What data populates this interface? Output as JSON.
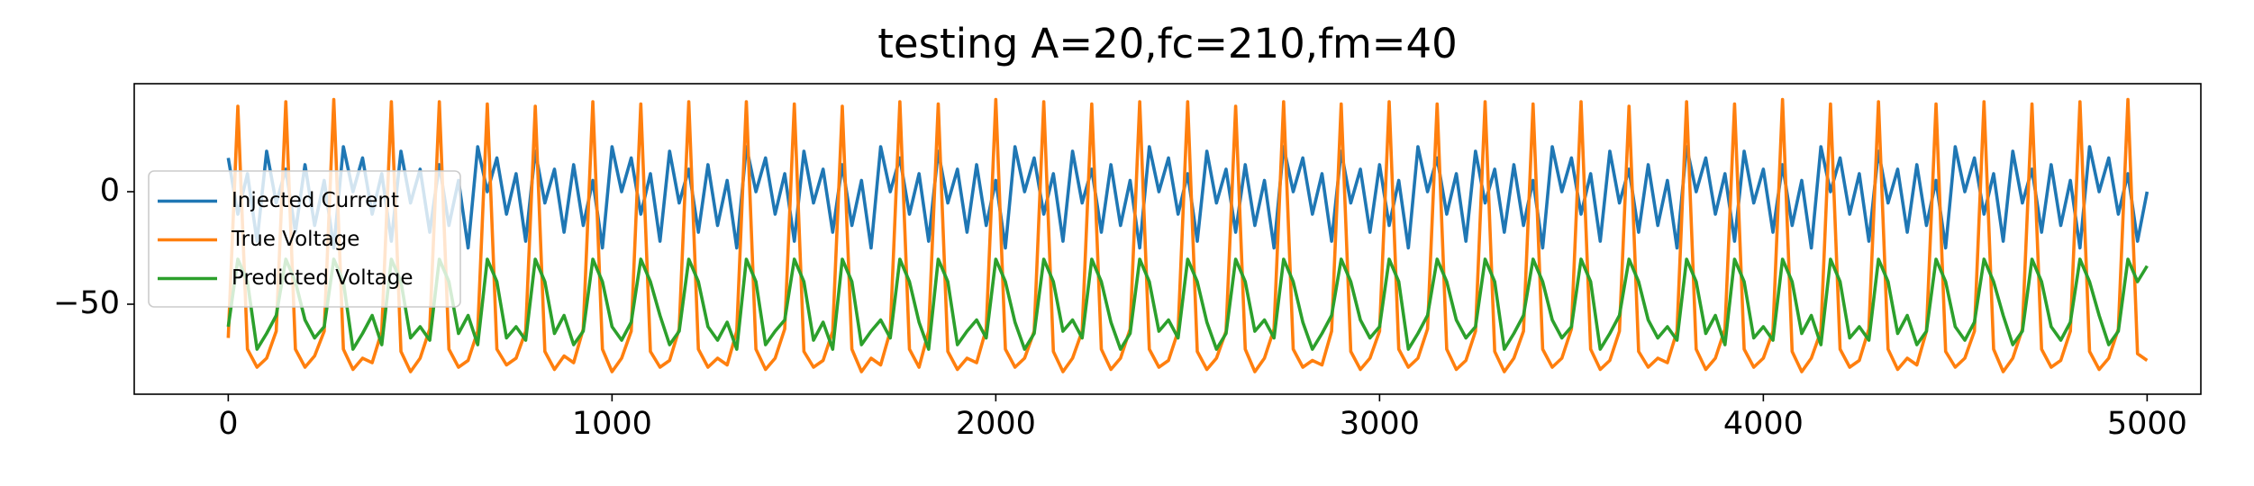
{
  "chart_data": {
    "type": "line",
    "title": "testing A=20,fc=210,fm=40",
    "x": [
      0,
      25,
      50,
      75,
      100,
      125,
      150,
      175,
      200,
      225,
      250,
      275,
      300,
      325,
      350,
      375,
      400,
      425,
      450,
      475,
      500,
      525,
      550,
      575,
      600,
      625,
      650,
      675,
      700,
      725,
      750,
      775,
      800,
      825,
      850,
      875,
      900,
      925,
      950,
      975,
      1000,
      1025,
      1050,
      1075,
      1100,
      1125,
      1150,
      1175,
      1200,
      1225,
      1250,
      1275,
      1300,
      1325,
      1350,
      1375,
      1400,
      1425,
      1450,
      1475,
      1500,
      1525,
      1550,
      1575,
      1600,
      1625,
      1650,
      1675,
      1700,
      1725,
      1750,
      1775,
      1800,
      1825,
      1850,
      1875,
      1900,
      1925,
      1950,
      1975,
      2000,
      2025,
      2050,
      2075,
      2100,
      2125,
      2150,
      2175,
      2200,
      2225,
      2250,
      2275,
      2300,
      2325,
      2350,
      2375,
      2400,
      2425,
      2450,
      2475,
      2500,
      2525,
      2550,
      2575,
      2600,
      2625,
      2650,
      2675,
      2700,
      2725,
      2750,
      2775,
      2800,
      2825,
      2850,
      2875,
      2900,
      2925,
      2950,
      2975,
      3000,
      3025,
      3050,
      3075,
      3100,
      3125,
      3150,
      3175,
      3200,
      3225,
      3250,
      3275,
      3300,
      3325,
      3350,
      3375,
      3400,
      3425,
      3450,
      3475,
      3500,
      3525,
      3550,
      3575,
      3600,
      3625,
      3650,
      3675,
      3700,
      3725,
      3750,
      3775,
      3800,
      3825,
      3850,
      3875,
      3900,
      3925,
      3950,
      3975,
      4000,
      4025,
      4050,
      4075,
      4100,
      4125,
      4150,
      4175,
      4200,
      4225,
      4250,
      4275,
      4300,
      4325,
      4350,
      4375,
      4400,
      4425,
      4450,
      4475,
      4500,
      4525,
      4550,
      4575,
      4600,
      4625,
      4650,
      4675,
      4700,
      4725,
      4750,
      4775,
      4800,
      4825,
      4850,
      4875,
      4900,
      4925,
      4950,
      4975,
      5000
    ],
    "series": [
      {
        "name": "Injected Current",
        "color": "#1f77b4",
        "values": [
          15,
          -10,
          8,
          -22,
          18,
          -5,
          10,
          -18,
          12,
          -15,
          5,
          -25,
          20,
          0,
          15,
          -10,
          8,
          -22,
          18,
          -5,
          10,
          -18,
          12,
          -15,
          5,
          -25,
          20,
          0,
          15,
          -10,
          8,
          -22,
          18,
          -5,
          10,
          -18,
          12,
          -15,
          5,
          -25,
          20,
          0,
          15,
          -10,
          8,
          -22,
          18,
          -5,
          10,
          -18,
          12,
          -15,
          5,
          -25,
          20,
          0,
          15,
          -10,
          8,
          -22,
          18,
          -5,
          10,
          -18,
          12,
          -15,
          5,
          -25,
          20,
          0,
          15,
          -10,
          8,
          -22,
          18,
          -5,
          10,
          -18,
          12,
          -15,
          5,
          -25,
          20,
          0,
          15,
          -10,
          8,
          -22,
          18,
          -5,
          10,
          -18,
          12,
          -15,
          5,
          -25,
          20,
          0,
          15,
          -10,
          8,
          -22,
          18,
          -5,
          10,
          -18,
          12,
          -15,
          5,
          -25,
          20,
          0,
          15,
          -10,
          8,
          -22,
          18,
          -5,
          10,
          -18,
          12,
          -15,
          5,
          -25,
          20,
          0,
          15,
          -10,
          8,
          -22,
          18,
          -5,
          10,
          -18,
          12,
          -15,
          5,
          -25,
          20,
          0,
          15,
          -10,
          8,
          -22,
          18,
          -5,
          10,
          -18,
          12,
          -15,
          5,
          -25,
          20,
          0,
          15,
          -10,
          8,
          -22,
          18,
          -5,
          10,
          -18,
          12,
          -15,
          5,
          -25,
          20,
          0,
          15,
          -10,
          8,
          -22,
          18,
          -5,
          10,
          -18,
          12,
          -15,
          5,
          -25,
          20,
          0,
          15,
          -10,
          8,
          -22,
          18,
          -5,
          10,
          -18,
          12,
          -15,
          5,
          -25,
          20,
          0,
          15,
          -10,
          8,
          -22,
          0
        ]
      },
      {
        "name": "True Voltage",
        "color": "#ff7f0e",
        "values": [
          -65,
          38,
          -70,
          -78,
          -74,
          -62,
          40,
          -70,
          -78,
          -73,
          -62,
          41,
          -70,
          -79,
          -74,
          -76,
          -62,
          40,
          -71,
          -80,
          -74,
          -61,
          40,
          -70,
          -78,
          -75,
          -62,
          39,
          -70,
          -77,
          -74,
          -62,
          38,
          -71,
          -79,
          -73,
          -76,
          -61,
          40,
          -70,
          -80,
          -74,
          -62,
          39,
          -71,
          -78,
          -75,
          -61,
          40,
          -70,
          -78,
          -74,
          -77,
          -62,
          40,
          -70,
          -79,
          -74,
          -61,
          39,
          -71,
          -78,
          -75,
          -62,
          38,
          -70,
          -80,
          -74,
          -77,
          -62,
          40,
          -70,
          -78,
          -62,
          39,
          -71,
          -79,
          -74,
          -76,
          -61,
          41,
          -70,
          -78,
          -74,
          -62,
          40,
          -71,
          -80,
          -74,
          -62,
          39,
          -70,
          -79,
          -74,
          -61,
          40,
          -70,
          -78,
          -75,
          -62,
          40,
          -71,
          -79,
          -74,
          -62,
          38,
          -70,
          -80,
          -74,
          -61,
          40,
          -70,
          -78,
          -75,
          -77,
          -62,
          39,
          -71,
          -79,
          -74,
          -62,
          40,
          -70,
          -78,
          -74,
          -61,
          39,
          -70,
          -79,
          -75,
          -62,
          40,
          -71,
          -80,
          -74,
          -62,
          39,
          -70,
          -78,
          -74,
          -61,
          40,
          -70,
          -79,
          -75,
          -62,
          38,
          -71,
          -78,
          -74,
          -76,
          -62,
          40,
          -70,
          -79,
          -74,
          -61,
          39,
          -70,
          -78,
          -74,
          -62,
          41,
          -71,
          -80,
          -74,
          -62,
          39,
          -70,
          -78,
          -75,
          -61,
          40,
          -70,
          -79,
          -74,
          -77,
          -62,
          39,
          -71,
          -78,
          -74,
          -62,
          40,
          -70,
          -80,
          -74,
          -61,
          39,
          -70,
          -78,
          -75,
          -62,
          40,
          -71,
          -79,
          -74,
          -61,
          41,
          -72,
          -75
        ]
      },
      {
        "name": "Predicted Voltage",
        "color": "#2ca02c",
        "values": [
          -60,
          -30,
          -40,
          -70,
          -63,
          -55,
          -30,
          -40,
          -57,
          -65,
          -60,
          -30,
          -40,
          -70,
          -63,
          -55,
          -68,
          -30,
          -40,
          -65,
          -60,
          -66,
          -30,
          -40,
          -63,
          -55,
          -68,
          -30,
          -40,
          -65,
          -60,
          -66,
          -30,
          -40,
          -63,
          -55,
          -68,
          -62,
          -30,
          -40,
          -60,
          -66,
          -58,
          -30,
          -40,
          -55,
          -68,
          -62,
          -30,
          -40,
          -60,
          -66,
          -58,
          -70,
          -30,
          -40,
          -68,
          -62,
          -57,
          -30,
          -40,
          -66,
          -58,
          -70,
          -30,
          -40,
          -68,
          -62,
          -57,
          -65,
          -30,
          -40,
          -58,
          -70,
          -30,
          -40,
          -68,
          -62,
          -57,
          -65,
          -30,
          -40,
          -58,
          -70,
          -63,
          -30,
          -40,
          -62,
          -57,
          -65,
          -30,
          -40,
          -58,
          -70,
          -63,
          -30,
          -40,
          -62,
          -57,
          -65,
          -30,
          -40,
          -58,
          -70,
          -63,
          -30,
          -40,
          -62,
          -57,
          -65,
          -30,
          -40,
          -58,
          -70,
          -63,
          -55,
          -30,
          -40,
          -57,
          -65,
          -60,
          -30,
          -40,
          -70,
          -63,
          -55,
          -30,
          -40,
          -57,
          -65,
          -60,
          -30,
          -40,
          -70,
          -63,
          -55,
          -30,
          -40,
          -57,
          -65,
          -60,
          -30,
          -40,
          -70,
          -63,
          -55,
          -30,
          -40,
          -57,
          -65,
          -60,
          -66,
          -30,
          -40,
          -63,
          -55,
          -68,
          -30,
          -40,
          -65,
          -60,
          -66,
          -30,
          -40,
          -63,
          -55,
          -68,
          -30,
          -40,
          -65,
          -60,
          -66,
          -30,
          -40,
          -63,
          -55,
          -68,
          -62,
          -30,
          -40,
          -60,
          -66,
          -58,
          -30,
          -40,
          -55,
          -68,
          -62,
          -30,
          -40,
          -60,
          -66,
          -58,
          -30,
          -40,
          -55,
          -68,
          -62,
          -30,
          -40,
          -33
        ]
      }
    ],
    "xlim": [
      -245,
      5140
    ],
    "ylim": [
      -90,
      48
    ],
    "xticks": [
      0,
      1000,
      2000,
      3000,
      4000,
      5000
    ],
    "yticks": [
      {
        "value": -50,
        "label": "−50"
      },
      0
    ],
    "legend": "center left",
    "grid": false
  }
}
